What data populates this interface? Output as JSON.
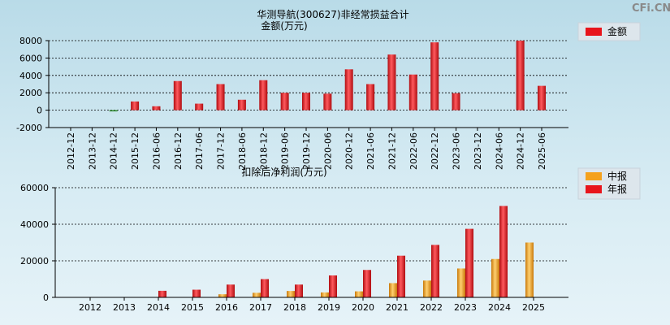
{
  "watermark": "CFi.CN",
  "chart_data": [
    {
      "type": "bar",
      "title": "华测导航(300627)非经常损益合计",
      "subtitle": "金额(万元)",
      "categories": [
        "2012-12",
        "2013-12",
        "2014-12",
        "2015-12",
        "2016-06",
        "2016-12",
        "2017-06",
        "2017-12",
        "2018-06",
        "2018-12",
        "2019-06",
        "2019-12",
        "2020-06",
        "2020-12",
        "2021-06",
        "2021-12",
        "2022-06",
        "2022-12",
        "2023-06",
        "2023-12",
        "2024-06",
        "2024-12",
        "2025-06"
      ],
      "series": [
        {
          "name": "金额",
          "color": "#e8141b",
          "values": [
            0,
            0,
            -100,
            1000,
            450,
            3350,
            750,
            3000,
            1200,
            3450,
            2000,
            2000,
            1900,
            4700,
            3000,
            6400,
            4100,
            7800,
            1950,
            0,
            0,
            8000,
            2800
          ]
        }
      ],
      "ylim": [
        -2000,
        8000
      ],
      "yticks": [
        "8000",
        "6000",
        "4000",
        "2000",
        "0",
        "-2000"
      ],
      "grid": true,
      "legend_position": "top-right"
    },
    {
      "type": "bar",
      "title": "扣除后净利润(万元)",
      "categories": [
        "2012",
        "2013",
        "2014",
        "2015",
        "2016",
        "2017",
        "2018",
        "2019",
        "2020",
        "2021",
        "2022",
        "2023",
        "2024",
        "2025"
      ],
      "series": [
        {
          "name": "中报",
          "color": "#f5a11c",
          "values": [
            null,
            null,
            null,
            null,
            1700,
            2500,
            3500,
            2700,
            3300,
            7800,
            9200,
            15800,
            21000,
            30000
          ]
        },
        {
          "name": "年报",
          "color": "#e8141b",
          "values": [
            null,
            null,
            3600,
            4200,
            7000,
            10000,
            7000,
            12000,
            15000,
            22800,
            28700,
            37500,
            50000,
            null
          ]
        }
      ],
      "ylim": [
        0,
        60000
      ],
      "yticks": [
        "60000",
        "40000",
        "20000",
        "0"
      ],
      "grid": true,
      "legend_position": "top-right"
    }
  ]
}
